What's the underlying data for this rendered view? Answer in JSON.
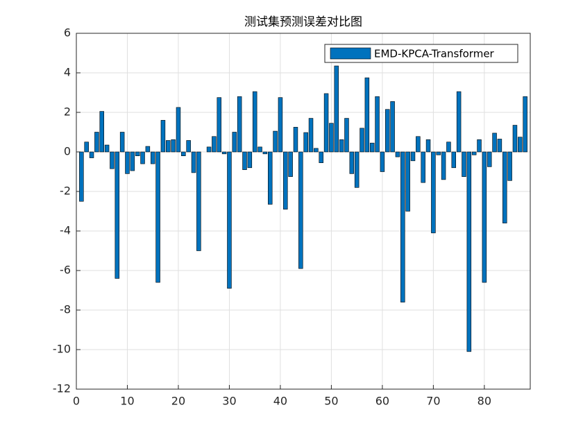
{
  "chart_data": {
    "type": "bar",
    "title": "测试集预测误差对比图",
    "x": [
      1,
      2,
      3,
      4,
      5,
      6,
      7,
      8,
      9,
      10,
      11,
      12,
      13,
      14,
      15,
      16,
      17,
      18,
      19,
      20,
      21,
      22,
      23,
      24,
      25,
      26,
      27,
      28,
      29,
      30,
      31,
      32,
      33,
      34,
      35,
      36,
      37,
      38,
      39,
      40,
      41,
      42,
      43,
      44,
      45,
      46,
      47,
      48,
      49,
      50,
      51,
      52,
      53,
      54,
      55,
      56,
      57,
      58,
      59,
      60,
      61,
      62,
      63,
      64,
      65,
      66,
      67,
      68,
      69,
      70,
      71,
      72,
      73,
      74,
      75,
      76,
      77,
      78,
      79,
      80,
      81,
      82,
      83,
      84,
      85,
      86,
      87,
      88
    ],
    "series": [
      {
        "name": "EMD-KPCA-Transformer",
        "color": "#0072bd",
        "values": [
          -2.5,
          0.5,
          -0.3,
          1.0,
          2.05,
          0.35,
          -0.85,
          -6.4,
          1.0,
          -1.1,
          -0.95,
          -0.2,
          -0.6,
          0.28,
          -0.6,
          -6.6,
          1.6,
          0.58,
          0.62,
          2.25,
          -0.2,
          0.58,
          -1.05,
          -5.0,
          0.0,
          0.25,
          0.78,
          2.75,
          -0.1,
          -6.9,
          1.0,
          2.8,
          -0.9,
          -0.8,
          3.05,
          0.25,
          -0.1,
          -2.65,
          1.05,
          2.75,
          -2.9,
          -1.25,
          1.25,
          -5.9,
          0.98,
          1.7,
          0.18,
          -0.55,
          2.95,
          1.45,
          4.35,
          0.62,
          1.7,
          -1.1,
          -1.8,
          1.2,
          3.75,
          0.45,
          2.8,
          -1.0,
          2.15,
          2.55,
          -0.25,
          -7.6,
          -3.0,
          -0.45,
          0.78,
          -1.55,
          0.62,
          -4.1,
          -0.15,
          -1.4,
          0.5,
          -0.8,
          3.05,
          -1.25,
          -10.1,
          -0.15,
          0.62,
          -6.6,
          -0.75,
          0.95,
          0.65,
          -3.6,
          -1.45,
          1.35,
          0.75,
          2.8
        ]
      }
    ],
    "xlim": [
      0,
      89
    ],
    "xticks": [
      0,
      10,
      20,
      30,
      40,
      50,
      60,
      70,
      80
    ],
    "ylim": [
      -12,
      6
    ],
    "yticks": [
      -12,
      -10,
      -8,
      -6,
      -4,
      -2,
      0,
      2,
      4,
      6
    ],
    "grid": true,
    "legend": "upper right"
  }
}
